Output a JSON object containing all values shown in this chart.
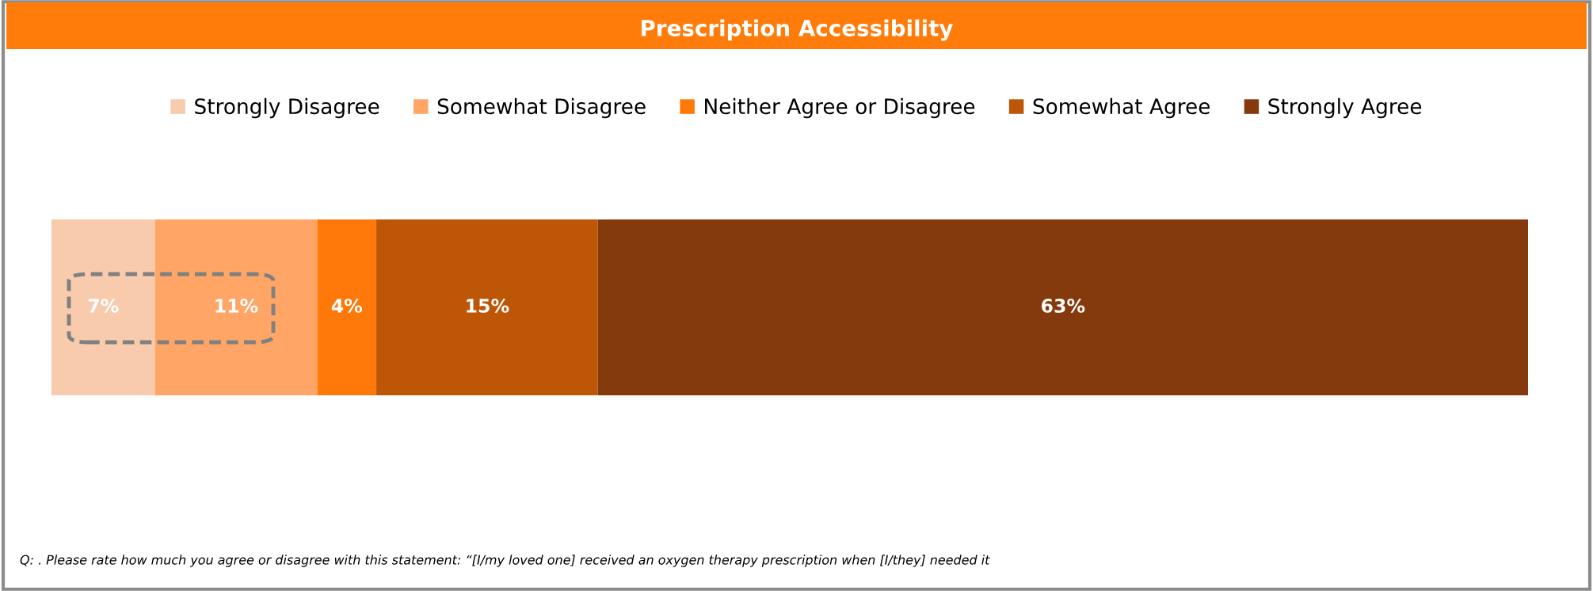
{
  "chart_data": {
    "type": "bar",
    "orientation": "horizontal",
    "stacked": true,
    "title": "Prescription Accessibility",
    "categories": [
      null
    ],
    "series": [
      {
        "name": "Strongly Disagree",
        "color": "#f8cbad",
        "values": [
          7
        ],
        "value_labels": [
          "7%"
        ]
      },
      {
        "name": "Somewhat Disagree",
        "color": "#ffa566",
        "values": [
          11
        ],
        "value_labels": [
          "11%"
        ]
      },
      {
        "name": "Neither Agree or Disagree",
        "color": "#ff780a",
        "values": [
          4
        ],
        "value_labels": [
          "4%"
        ]
      },
      {
        "name": "Somewhat Agree",
        "color": "#bd5606",
        "values": [
          15
        ],
        "value_labels": [
          "15%"
        ]
      },
      {
        "name": "Strongly Agree",
        "color": "#843a0c",
        "values": [
          63
        ],
        "value_labels": [
          "63%"
        ]
      }
    ],
    "tick_labels": false,
    "legend": "top",
    "grid": false,
    "annotations": [
      "Q: . Please rate how much you agree or disagree with this statement: “[I/my loved one] received an oxygen therapy prescription when [I/they] needed it"
    ]
  }
}
